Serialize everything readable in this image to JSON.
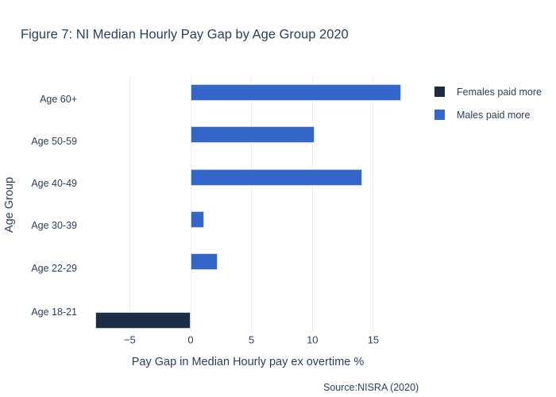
{
  "colors": {
    "females_paid_more": "#1E2C44",
    "males_paid_more": "#3566C9",
    "grid": "#E9EDF6",
    "text": "#2A3F5F",
    "bar_border": "#C9D5E8",
    "background": "#FFFFFF"
  },
  "legend": {
    "items": [
      {
        "label": "Females paid more",
        "series": "females_paid_more"
      },
      {
        "label": "Males paid more",
        "series": "males_paid_more"
      }
    ]
  },
  "chart_data": {
    "type": "bar",
    "orientation": "horizontal",
    "title": "Figure 7: NI Median Hourly Pay Gap by Age Group 2020",
    "xlabel": "Pay Gap in Median Hourly pay ex overtime %",
    "ylabel": "Age Group",
    "source": "Source:NISRA (2020)",
    "categories": [
      "Age 60+",
      "Age 50-59",
      "Age 40-49",
      "Age 30-39",
      "Age 22-29",
      "Age 18-21"
    ],
    "values": [
      17.3,
      10.2,
      14.1,
      1.1,
      2.2,
      -7.8
    ],
    "series": [
      {
        "name": "Females paid more",
        "values": [
          null,
          null,
          null,
          null,
          null,
          -7.8
        ]
      },
      {
        "name": "Males paid more",
        "values": [
          17.3,
          10.2,
          14.1,
          1.1,
          2.2,
          null
        ]
      }
    ],
    "x_ticks": [
      {
        "value": -5,
        "label": "−5"
      },
      {
        "value": 0,
        "label": "0"
      },
      {
        "value": 5,
        "label": "5"
      },
      {
        "value": 10,
        "label": "10"
      },
      {
        "value": 15,
        "label": "15"
      }
    ],
    "xlim": [
      -8.3,
      19.9
    ],
    "grid": true,
    "legend_position": "right"
  }
}
